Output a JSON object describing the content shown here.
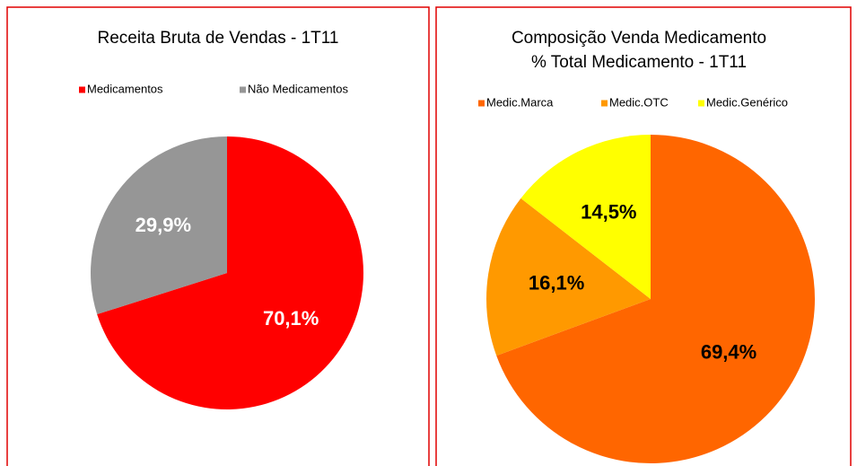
{
  "chart_data": [
    {
      "type": "pie",
      "title": "Receita Bruta de Vendas - 1T11",
      "categories": [
        "Medicamentos",
        "Não Medicamentos"
      ],
      "values": [
        70.1,
        29.9
      ],
      "value_labels": [
        "70,1%",
        "29,9%"
      ],
      "colors": [
        "#ff0000",
        "#969696"
      ],
      "label_color": "#ffffff"
    },
    {
      "type": "pie",
      "title": "Composição Venda Medicamento",
      "subtitle": "% Total Medicamento - 1T11",
      "categories": [
        "Medic.Marca",
        "Medic.OTC",
        "Medic.Genérico"
      ],
      "values": [
        69.4,
        16.1,
        14.5
      ],
      "value_labels": [
        "69,4%",
        "16,1%",
        "14,5%"
      ],
      "colors": [
        "#ff6600",
        "#ff9900",
        "#ffff00"
      ],
      "label_color": "#000000"
    }
  ]
}
